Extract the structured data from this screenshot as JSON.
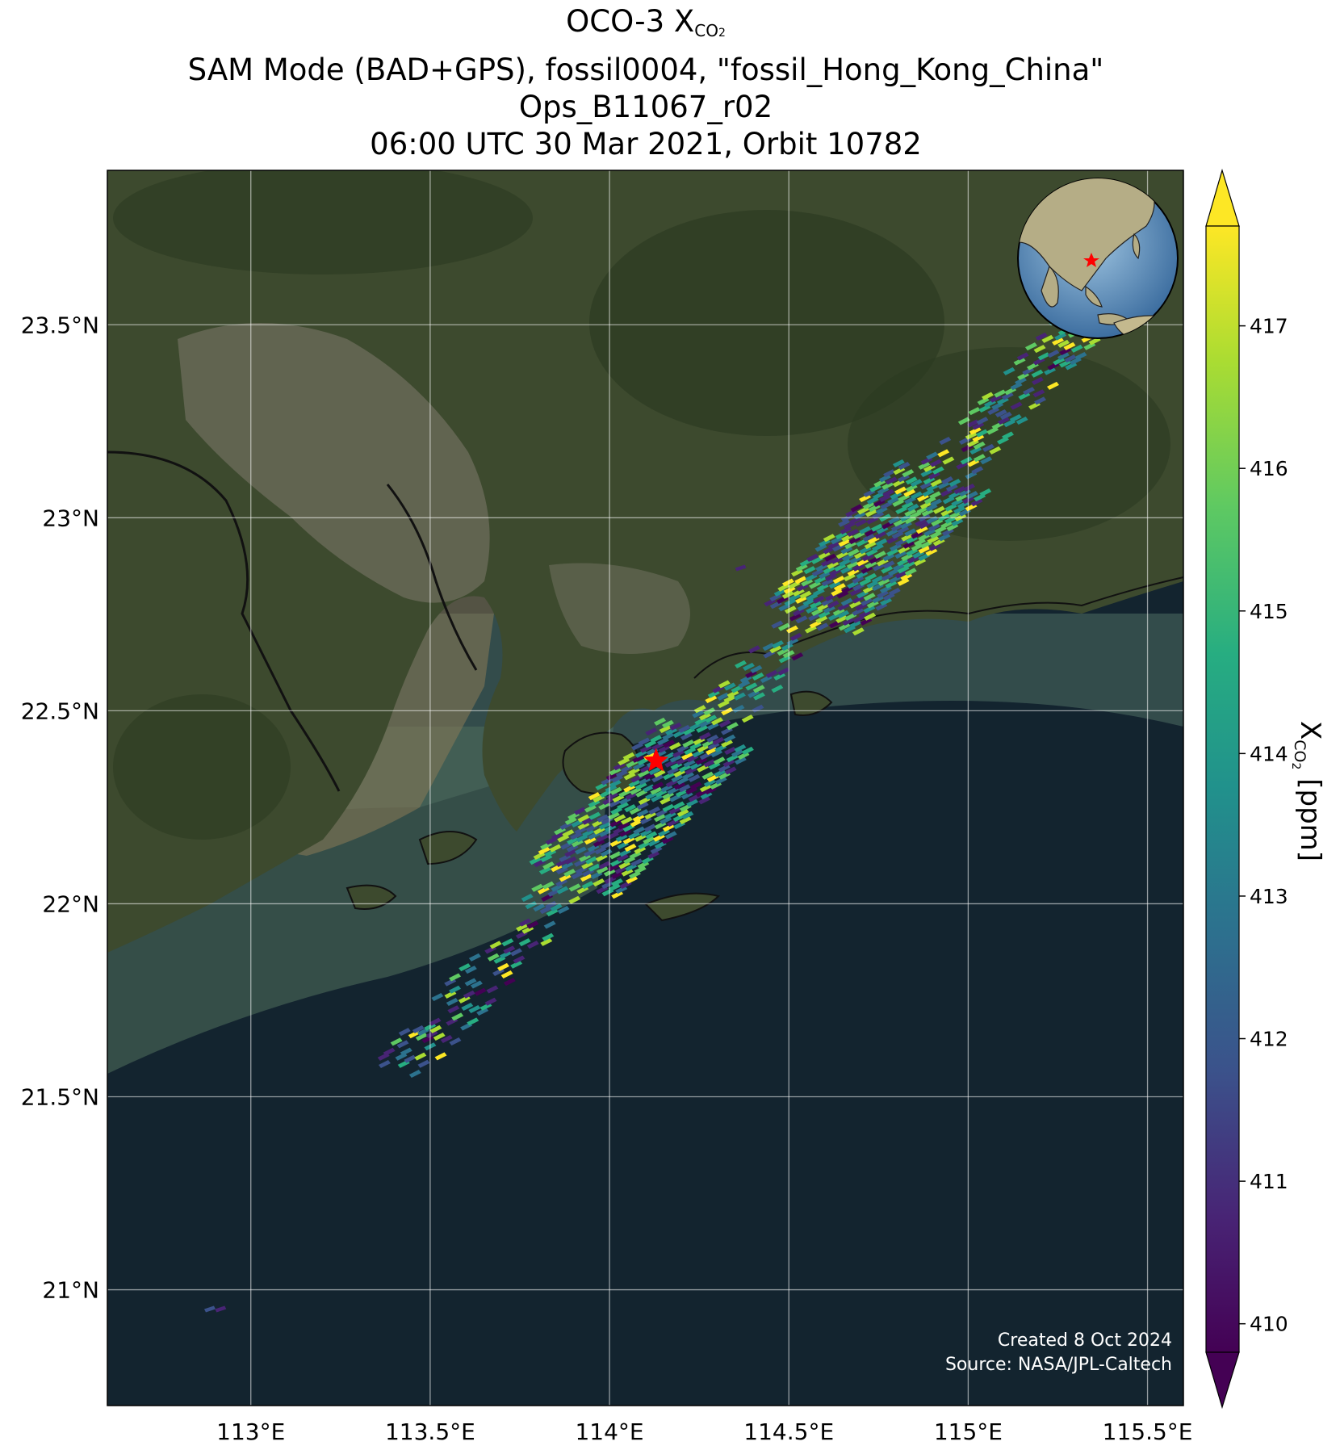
{
  "title": {
    "line1_prefix": "OCO-3 X",
    "line1_sub": "CO",
    "line1_sub2": "2",
    "line2": "SAM Mode (BAD+GPS), fossil0004, \"fossil_Hong_Kong_China\"",
    "line3": "Ops_B11067_r02",
    "line4": "06:00 UTC 30 Mar 2021, Orbit 10782"
  },
  "axes": {
    "lon_ticks": [
      "113°E",
      "113.5°E",
      "114°E",
      "114.5°E",
      "115°E",
      "115.5°E"
    ],
    "lat_ticks": [
      "23.5°N",
      "23°N",
      "22.5°N",
      "22°N",
      "21.5°N",
      "21°N"
    ]
  },
  "colorbar": {
    "label_prefix": "X",
    "label_sub": "CO",
    "label_sub2": "2",
    "label_suffix": " [ppm]",
    "ticks": [
      "417",
      "416",
      "415",
      "414",
      "413",
      "412",
      "411",
      "410"
    ],
    "range": [
      409.8,
      417.7
    ],
    "colormap": "viridis"
  },
  "credit": {
    "created": "Created 8 Oct 2024",
    "source": "Source: NASA/JPL-Caltech"
  },
  "colors": {
    "land": "#3d4a2e",
    "sea": "#13242f",
    "estuary": "#6a7a62",
    "target_marker": "#ff0000"
  },
  "map_data": {
    "extent": {
      "lon": [
        112.6,
        115.6
      ],
      "lat": [
        20.7,
        23.9
      ]
    },
    "target": {
      "lon": 114.13,
      "lat": 22.37,
      "name": "fossil_Hong_Kong_China"
    },
    "swath": {
      "start": {
        "lon": 113.4,
        "lat": 21.57
      },
      "end": {
        "lon": 115.3,
        "lat": 23.5
      },
      "value_range_ppm": [
        410,
        417.7
      ]
    },
    "stray_footprints": [
      {
        "lon": 112.87,
        "lat": 20.95,
        "value": 412
      },
      {
        "lon": 112.9,
        "lat": 20.95,
        "value": 410.5
      },
      {
        "lon": 114.35,
        "lat": 22.87,
        "value": 411
      }
    ],
    "inset_globe": {
      "center_lon": 114.1,
      "center_lat": 22.3
    }
  }
}
